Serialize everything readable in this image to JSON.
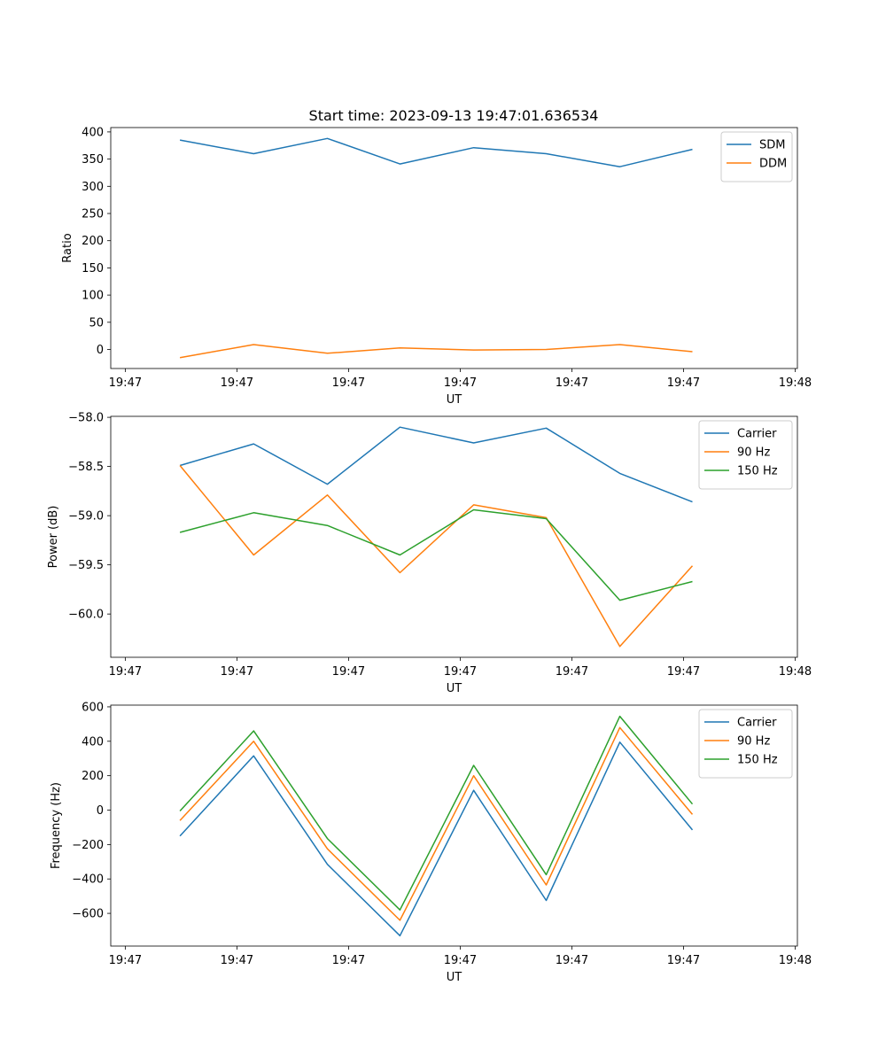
{
  "figure": {
    "title": "Start time: 2023-09-13 19:47:01.636534"
  },
  "chart_data": [
    {
      "type": "line",
      "title": "Start time: 2023-09-13 19:47:01.636534",
      "xlabel": "UT",
      "ylabel": "Ratio",
      "x_tick_labels": [
        "19:47",
        "19:47",
        "19:47",
        "19:47",
        "19:47",
        "19:47",
        "19:48"
      ],
      "x_ticks": [
        0,
        1,
        2,
        3,
        4,
        5,
        6
      ],
      "xlim": [
        -0.13,
        6.02
      ],
      "y_ticks": [
        0,
        50,
        100,
        150,
        200,
        250,
        300,
        350,
        400
      ],
      "y_tick_labels": [
        "0",
        "50",
        "100",
        "150",
        "200",
        "250",
        "300",
        "350",
        "400"
      ],
      "ylim": [
        -35,
        408
      ],
      "legend_position": "top-right",
      "x": [
        0.49,
        1.15,
        1.81,
        2.46,
        3.12,
        3.77,
        4.43,
        5.08
      ],
      "series": [
        {
          "name": "SDM",
          "color": "#1f77b4",
          "values": [
            385,
            360,
            388,
            341,
            371,
            360,
            336,
            368
          ]
        },
        {
          "name": "DDM",
          "color": "#ff7f0e",
          "values": [
            -15,
            9,
            -7,
            3,
            -1,
            0,
            9,
            -4
          ]
        }
      ]
    },
    {
      "type": "line",
      "title": "",
      "xlabel": "UT",
      "ylabel": "Power (dB)",
      "x_tick_labels": [
        "19:47",
        "19:47",
        "19:47",
        "19:47",
        "19:47",
        "19:47",
        "19:48"
      ],
      "x_ticks": [
        0,
        1,
        2,
        3,
        4,
        5,
        6
      ],
      "xlim": [
        -0.13,
        6.02
      ],
      "y_ticks": [
        -60.0,
        -59.5,
        -59.0,
        -58.5,
        -58.0
      ],
      "y_tick_labels": [
        "−60.0",
        "−59.5",
        "−59.0",
        "−58.5",
        "−58.0"
      ],
      "ylim": [
        -60.44,
        -57.99
      ],
      "legend_position": "top-right",
      "x": [
        0.49,
        1.15,
        1.81,
        2.46,
        3.12,
        3.77,
        4.43,
        5.08
      ],
      "series": [
        {
          "name": "Carrier",
          "color": "#1f77b4",
          "values": [
            -58.49,
            -58.27,
            -58.68,
            -58.1,
            -58.26,
            -58.11,
            -58.57,
            -58.86
          ]
        },
        {
          "name": "90 Hz",
          "color": "#ff7f0e",
          "values": [
            -58.49,
            -59.4,
            -58.79,
            -59.58,
            -58.89,
            -59.02,
            -60.33,
            -59.51
          ]
        },
        {
          "name": "150 Hz",
          "color": "#2ca02c",
          "values": [
            -59.17,
            -58.97,
            -59.1,
            -59.4,
            -58.94,
            -59.03,
            -59.86,
            -59.67
          ]
        }
      ]
    },
    {
      "type": "line",
      "title": "",
      "xlabel": "UT",
      "ylabel": "Frequency (Hz)",
      "x_tick_labels": [
        "19:47",
        "19:47",
        "19:47",
        "19:47",
        "19:47",
        "19:47",
        "19:48"
      ],
      "x_ticks": [
        0,
        1,
        2,
        3,
        4,
        5,
        6
      ],
      "xlim": [
        -0.13,
        6.02
      ],
      "y_ticks": [
        -600,
        -400,
        -200,
        0,
        200,
        400,
        600
      ],
      "y_tick_labels": [
        "−600",
        "−400",
        "−200",
        "0",
        "200",
        "400",
        "600"
      ],
      "ylim": [
        -790,
        610
      ],
      "legend_position": "top-right",
      "x": [
        0.49,
        1.15,
        1.81,
        2.46,
        3.12,
        3.77,
        4.43,
        5.08
      ],
      "series": [
        {
          "name": "Carrier",
          "color": "#1f77b4",
          "values": [
            -150,
            315,
            -315,
            -730,
            115,
            -525,
            395,
            -115
          ]
        },
        {
          "name": "90 Hz",
          "color": "#ff7f0e",
          "values": [
            -60,
            400,
            -225,
            -640,
            200,
            -435,
            480,
            -25
          ]
        },
        {
          "name": "150 Hz",
          "color": "#2ca02c",
          "values": [
            -5,
            460,
            -165,
            -580,
            260,
            -375,
            545,
            35
          ]
        }
      ]
    }
  ]
}
